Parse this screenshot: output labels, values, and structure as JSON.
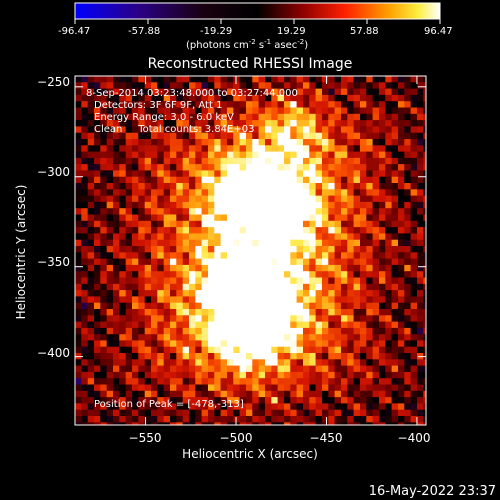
{
  "colorbar": {
    "ticks": [
      "-96.47",
      "-57.88",
      "-19.29",
      "19.29",
      "57.88",
      "96.47"
    ],
    "units_main": "(photons cm",
    "units_exp1": "-2",
    "units_mid": " s",
    "units_exp2": "-1",
    "units_end": " asec",
    "units_exp3": "-2",
    "units_close": ")"
  },
  "annotations": {
    "time_range": "8-Sep-2014 03:23:48.000 to 03:27:44.000",
    "detectors": "Detectors: 3F 6F 9F, Att 1",
    "energy": "Energy Range: 3.0 - 6.0 keV",
    "algorithm": "Clean     Total counts: 3.84E+03",
    "peak": "Position of Peak = [-478,-313]"
  },
  "footer": {
    "timestamp": "16-May-2022 23:37"
  },
  "chart_data": {
    "type": "heatmap",
    "title": "Reconstructed RHESSI Image",
    "xlabel": "Heliocentric X (arcsec)",
    "ylabel": "Heliocentric Y (arcsec)",
    "xlim": [
      -589,
      -395
    ],
    "ylim": [
      -438,
      -244
    ],
    "xticks": [
      -550,
      -500,
      -450,
      -400
    ],
    "xtick_labels": [
      "−550",
      "−500",
      "−450",
      "−400"
    ],
    "yticks": [
      -250,
      -300,
      -350,
      -400
    ],
    "ytick_labels": [
      "−250",
      "−300",
      "−350",
      "−400"
    ],
    "colorscale": "red-temperature (blue negative, black zero, red-yellow-white positive)",
    "value_range": [
      -96.47,
      96.47
    ],
    "sources": [
      {
        "x": -478,
        "y": -313,
        "peak": 96.47
      },
      {
        "x": -497,
        "y": -308,
        "peak": 72
      },
      {
        "x": -488,
        "y": -370,
        "peak": 90
      },
      {
        "x": -500,
        "y": -362,
        "peak": 70
      },
      {
        "x": -495,
        "y": -384,
        "peak": 65
      },
      {
        "x": -470,
        "y": -272,
        "peak": 38
      }
    ]
  }
}
